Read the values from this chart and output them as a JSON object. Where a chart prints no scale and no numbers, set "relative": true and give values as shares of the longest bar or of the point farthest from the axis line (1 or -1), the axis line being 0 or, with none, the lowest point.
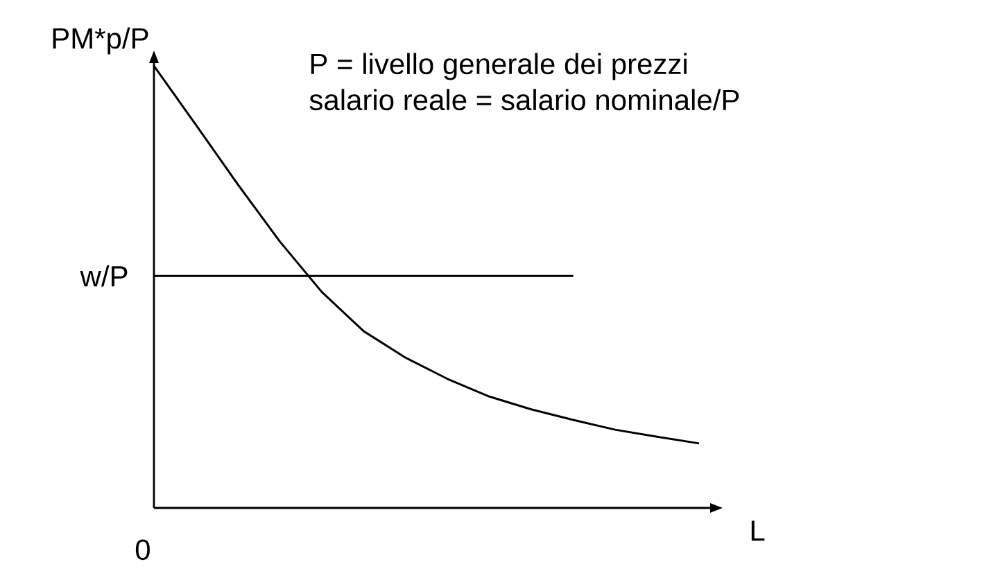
{
  "chart_data": {
    "type": "line",
    "relative": true,
    "ylabel": "PM*p/P",
    "xlabel": "L",
    "marker": "none",
    "line_style": "solid",
    "annotations": [
      "P = livello generale dei prezzi",
      "salario reale = salario nominale/P",
      "0"
    ],
    "categories": [
      null,
      null,
      null,
      null,
      null,
      null,
      null,
      null,
      null,
      null,
      null,
      null,
      null,
      null
    ],
    "series": [
      {
        "values": [
          1,
          0.867,
          0.732,
          0.603,
          0.489,
          0.4,
          0.34,
          0.292,
          0.252,
          0.223,
          0.199,
          0.177,
          0.161,
          0.146
        ],
        "color": "#000000"
      },
      {
        "name": "w/P",
        "values": [
          0.525,
          0.525,
          0.525,
          0.525,
          0.525,
          0.525,
          0.525,
          0.525,
          0.525,
          0.525,
          0.525,
          null,
          null,
          null
        ],
        "color": "#000000"
      }
    ]
  }
}
